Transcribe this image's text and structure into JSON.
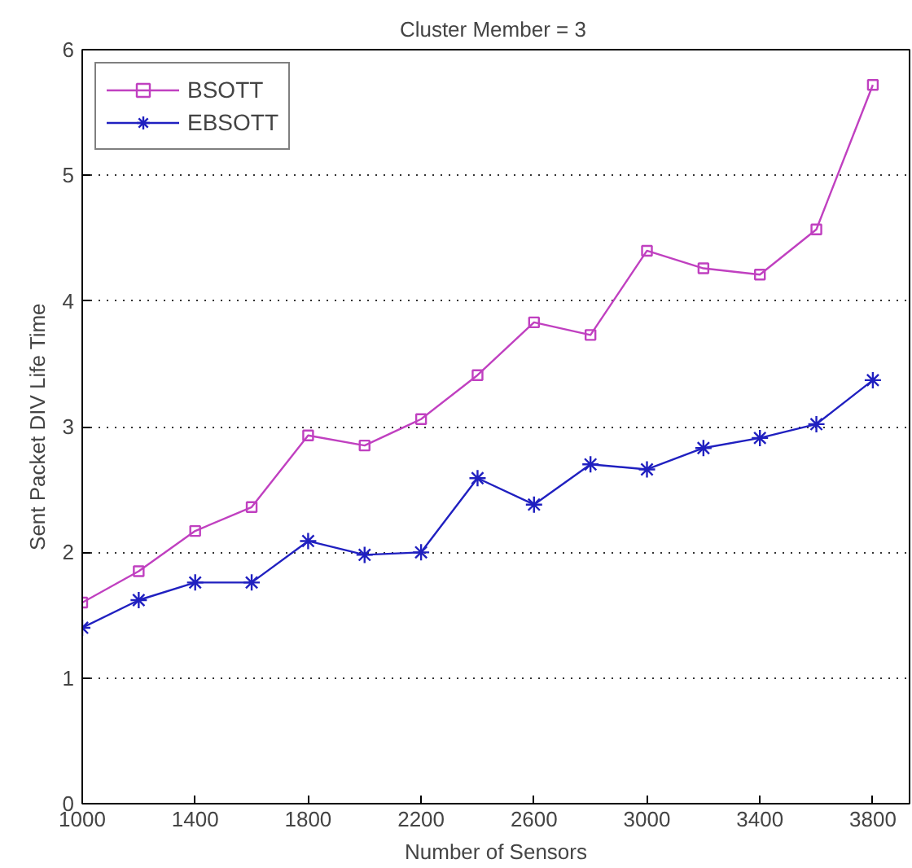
{
  "chart_data": {
    "type": "line",
    "title": "Cluster Member  = 3",
    "xlabel": "Number of Sensors",
    "ylabel": "Sent Packet DIV Life Time",
    "x": [
      1000,
      1200,
      1400,
      1600,
      1800,
      2000,
      2200,
      2400,
      2600,
      2800,
      3000,
      3200,
      3400,
      3600,
      3800
    ],
    "series": [
      {
        "name": "BSOTT",
        "color": "#c040c0",
        "marker": "square",
        "values": [
          1.6,
          1.85,
          2.17,
          2.36,
          2.93,
          2.85,
          3.06,
          3.41,
          3.83,
          3.73,
          4.4,
          4.26,
          4.21,
          4.57,
          5.72
        ]
      },
      {
        "name": "EBSOTT",
        "color": "#2020c0",
        "marker": "cross",
        "values": [
          1.4,
          1.62,
          1.76,
          1.76,
          2.09,
          1.98,
          2.0,
          2.59,
          2.38,
          2.7,
          2.66,
          2.83,
          2.91,
          3.02,
          3.37
        ]
      }
    ],
    "xlim": [
      1000,
      3930
    ],
    "xticks": [
      1000,
      1400,
      1800,
      2200,
      2600,
      3000,
      3400,
      3800
    ],
    "ylim": [
      0,
      6
    ],
    "yticks": [
      0,
      1,
      2,
      3,
      4,
      5,
      6
    ],
    "grid": "y",
    "legend": "top left",
    "line_style": "solid"
  }
}
